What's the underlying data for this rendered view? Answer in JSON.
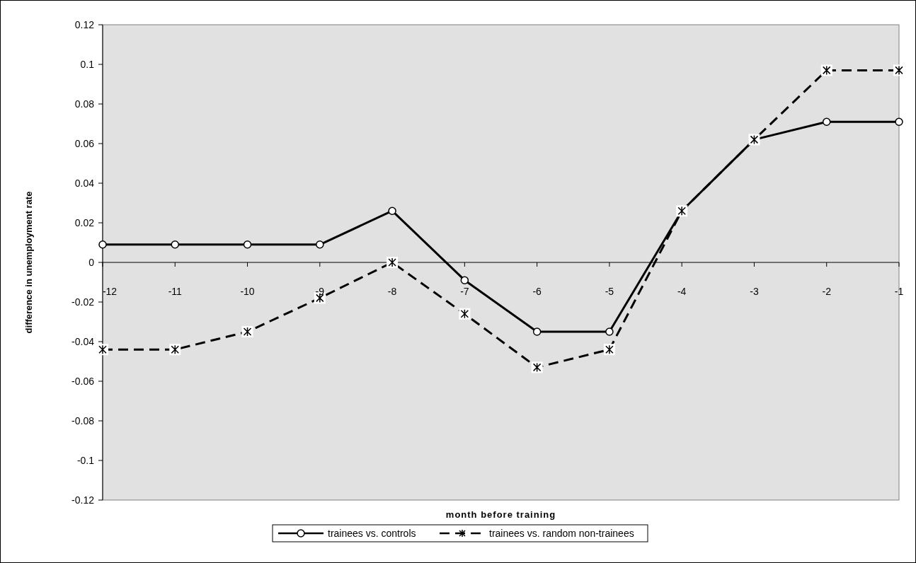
{
  "chart_data": {
    "type": "line",
    "xlabel": "month before training",
    "ylabel": "difference in unemployment rate",
    "categories": [
      "-12",
      "-11",
      "-10",
      "-9",
      "-8",
      "-7",
      "-6",
      "-5",
      "-4",
      "-3",
      "-2",
      "-1"
    ],
    "series": [
      {
        "name": "trainees vs. controls",
        "color": "#000000",
        "marker": "circle",
        "line_style": "solid",
        "values": [
          0.009,
          0.009,
          0.009,
          0.009,
          0.026,
          -0.009,
          -0.035,
          -0.035,
          0.026,
          0.062,
          0.071,
          0.071
        ]
      },
      {
        "name": "trainees vs. random non-trainees",
        "color": "#000000",
        "marker": "cross",
        "line_style": "dashed",
        "values": [
          -0.044,
          -0.044,
          -0.035,
          -0.018,
          0,
          -0.026,
          -0.053,
          -0.044,
          0.026,
          0.062,
          0.097,
          0.097
        ]
      }
    ],
    "ylim": [
      -0.12,
      0.12
    ],
    "yticks": [
      -0.12,
      -0.1,
      -0.08,
      -0.06,
      -0.04,
      -0.02,
      0,
      0.02,
      0.04,
      0.06,
      0.08,
      0.1,
      0.12
    ],
    "grid": false,
    "legend": "bottom"
  }
}
